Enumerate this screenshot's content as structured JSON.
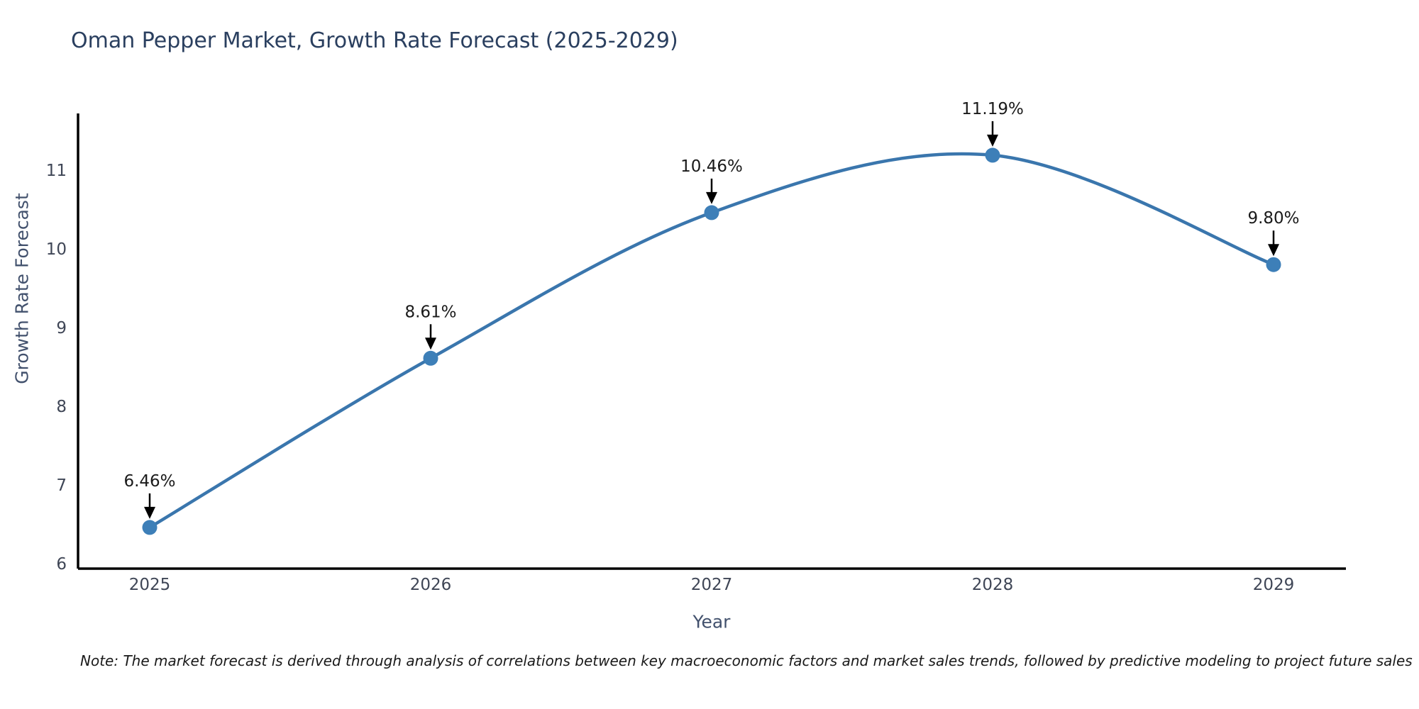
{
  "chart_data": {
    "type": "line",
    "title": "Oman Pepper Market, Growth Rate Forecast (2025-2029)",
    "xlabel": "Year",
    "ylabel": "Growth Rate Forecast",
    "categories": [
      "2025",
      "2026",
      "2027",
      "2028",
      "2029"
    ],
    "values": [
      6.46,
      8.61,
      10.46,
      11.19,
      9.8
    ],
    "point_labels": [
      "6.46%",
      "8.61%",
      "10.46%",
      "11.19%",
      "9.80%"
    ],
    "yticks": [
      6,
      7,
      8,
      9,
      10,
      11
    ],
    "ylim": [
      5.94,
      11.72
    ],
    "xlim_years": [
      2025,
      2029
    ],
    "grid": false,
    "legend_position": "none",
    "line_color": "#3a76ad",
    "marker_color": "#3d7fb8",
    "axis_color": "#000000",
    "annotation_arrow_color": "#000000",
    "note": "Note: The market forecast is derived through analysis of correlations between key macroeconomic factors and market sales trends, followed by predictive modeling to project future sales"
  }
}
